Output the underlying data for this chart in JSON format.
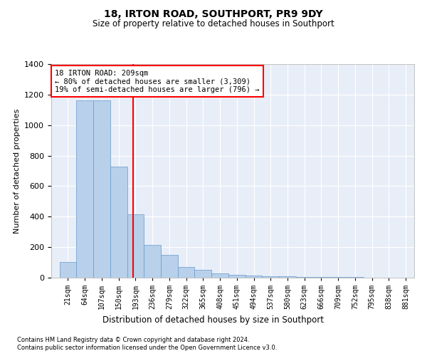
{
  "title": "18, IRTON ROAD, SOUTHPORT, PR9 9DY",
  "subtitle": "Size of property relative to detached houses in Southport",
  "xlabel": "Distribution of detached houses by size in Southport",
  "ylabel": "Number of detached properties",
  "bar_color": "#b8d0ea",
  "bar_edge_color": "#6699cc",
  "background_color": "#e8eef8",
  "grid_color": "#ffffff",
  "redline_x": 209,
  "categories": [
    "21sqm",
    "64sqm",
    "107sqm",
    "150sqm",
    "193sqm",
    "236sqm",
    "279sqm",
    "322sqm",
    "365sqm",
    "408sqm",
    "451sqm",
    "494sqm",
    "537sqm",
    "580sqm",
    "623sqm",
    "666sqm",
    "709sqm",
    "752sqm",
    "795sqm",
    "838sqm",
    "881sqm"
  ],
  "bin_left": [
    21,
    64,
    107,
    150,
    193,
    236,
    279,
    322,
    365,
    408,
    451,
    494,
    537,
    580,
    623,
    666,
    709,
    752,
    795,
    838,
    881
  ],
  "bin_width": 43,
  "bar_heights": [
    105,
    1160,
    1160,
    730,
    415,
    215,
    150,
    70,
    50,
    30,
    20,
    15,
    10,
    8,
    5,
    5,
    3,
    3,
    2,
    2,
    2
  ],
  "annotation_title": "18 IRTON ROAD: 209sqm",
  "annotation_line1": "← 80% of detached houses are smaller (3,309)",
  "annotation_line2": "19% of semi-detached houses are larger (796) →",
  "footer1": "Contains HM Land Registry data © Crown copyright and database right 2024.",
  "footer2": "Contains public sector information licensed under the Open Government Licence v3.0.",
  "ylim": [
    0,
    1400
  ],
  "yticks": [
    0,
    200,
    400,
    600,
    800,
    1000,
    1200,
    1400
  ],
  "xlim_left": 0,
  "xlim_right": 924
}
